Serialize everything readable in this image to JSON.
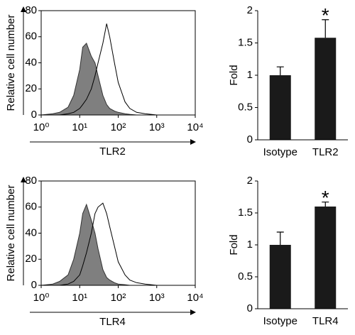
{
  "chart_data": [
    {
      "type": "histogram",
      "xscale": "log",
      "xlim": [
        1,
        10000
      ],
      "xticks": [
        {
          "value": 1,
          "label": "10⁰"
        },
        {
          "value": 10,
          "label": "10¹"
        },
        {
          "value": 100,
          "label": "10²"
        },
        {
          "value": 1000,
          "label": "10³"
        },
        {
          "value": 10000,
          "label": "10⁴"
        }
      ],
      "ylim": [
        0,
        80
      ],
      "yticks": [
        0,
        20,
        40,
        60,
        80
      ],
      "x_label": "TLR2",
      "y_label": "Relative cell number",
      "x": [
        1,
        2,
        3,
        5,
        7,
        10,
        12,
        15,
        20,
        25,
        30,
        40,
        50,
        60,
        80,
        100,
        150,
        200,
        300,
        500,
        1000,
        3000,
        10000
      ],
      "series": [
        {
          "color": "#7f7f7f",
          "fill": true,
          "values": [
            0,
            1,
            2,
            6,
            15,
            35,
            52,
            55,
            45,
            40,
            30,
            15,
            8,
            5,
            3,
            2,
            1,
            0.5,
            0,
            0,
            0,
            0,
            0
          ]
        },
        {
          "color": "#000000",
          "fill": false,
          "values": [
            0,
            0,
            0,
            1,
            2,
            5,
            8,
            12,
            20,
            30,
            40,
            55,
            70,
            60,
            40,
            25,
            10,
            5,
            2,
            1,
            0,
            0,
            0
          ]
        }
      ]
    },
    {
      "type": "histogram",
      "xscale": "log",
      "xlim": [
        1,
        10000
      ],
      "xticks": [
        {
          "value": 1,
          "label": "10⁰"
        },
        {
          "value": 10,
          "label": "10¹"
        },
        {
          "value": 100,
          "label": "10²"
        },
        {
          "value": 1000,
          "label": "10³"
        },
        {
          "value": 10000,
          "label": "10⁴"
        }
      ],
      "ylim": [
        0,
        80
      ],
      "yticks": [
        0,
        20,
        40,
        60,
        80
      ],
      "x_label": "TLR4",
      "y_label": "Relative cell number",
      "x": [
        1,
        2,
        3,
        5,
        7,
        10,
        12,
        15,
        20,
        25,
        30,
        40,
        50,
        60,
        80,
        100,
        150,
        200,
        300,
        500,
        1000,
        3000,
        10000
      ],
      "series": [
        {
          "color": "#7f7f7f",
          "fill": true,
          "values": [
            0,
            1,
            3,
            8,
            20,
            40,
            55,
            62,
            50,
            40,
            28,
            12,
            6,
            4,
            2,
            1,
            0.5,
            0,
            0,
            0,
            0,
            0,
            0
          ]
        },
        {
          "color": "#000000",
          "fill": false,
          "values": [
            0,
            0,
            0,
            1,
            3,
            8,
            15,
            25,
            40,
            55,
            60,
            63,
            55,
            45,
            30,
            18,
            8,
            4,
            2,
            1,
            0,
            0,
            0
          ]
        }
      ]
    },
    {
      "type": "bar",
      "categories": [
        "Isotype",
        "TLR2"
      ],
      "values": [
        1,
        1.58
      ],
      "errors": [
        0.13,
        0.28
      ],
      "annotations": [
        null,
        "*"
      ],
      "color": "#1a1a1a",
      "ylim": [
        0,
        2
      ],
      "yticks": [
        0,
        0.5,
        1,
        1.5,
        2
      ],
      "y_label": "Fold"
    },
    {
      "type": "bar",
      "categories": [
        "Isotype",
        "TLR4"
      ],
      "values": [
        1,
        1.6
      ],
      "errors": [
        0.2,
        0.07
      ],
      "annotations": [
        null,
        "*"
      ],
      "color": "#1a1a1a",
      "ylim": [
        0,
        2
      ],
      "yticks": [
        0,
        0.5,
        1,
        1.5,
        2
      ],
      "y_label": "Fold"
    }
  ]
}
